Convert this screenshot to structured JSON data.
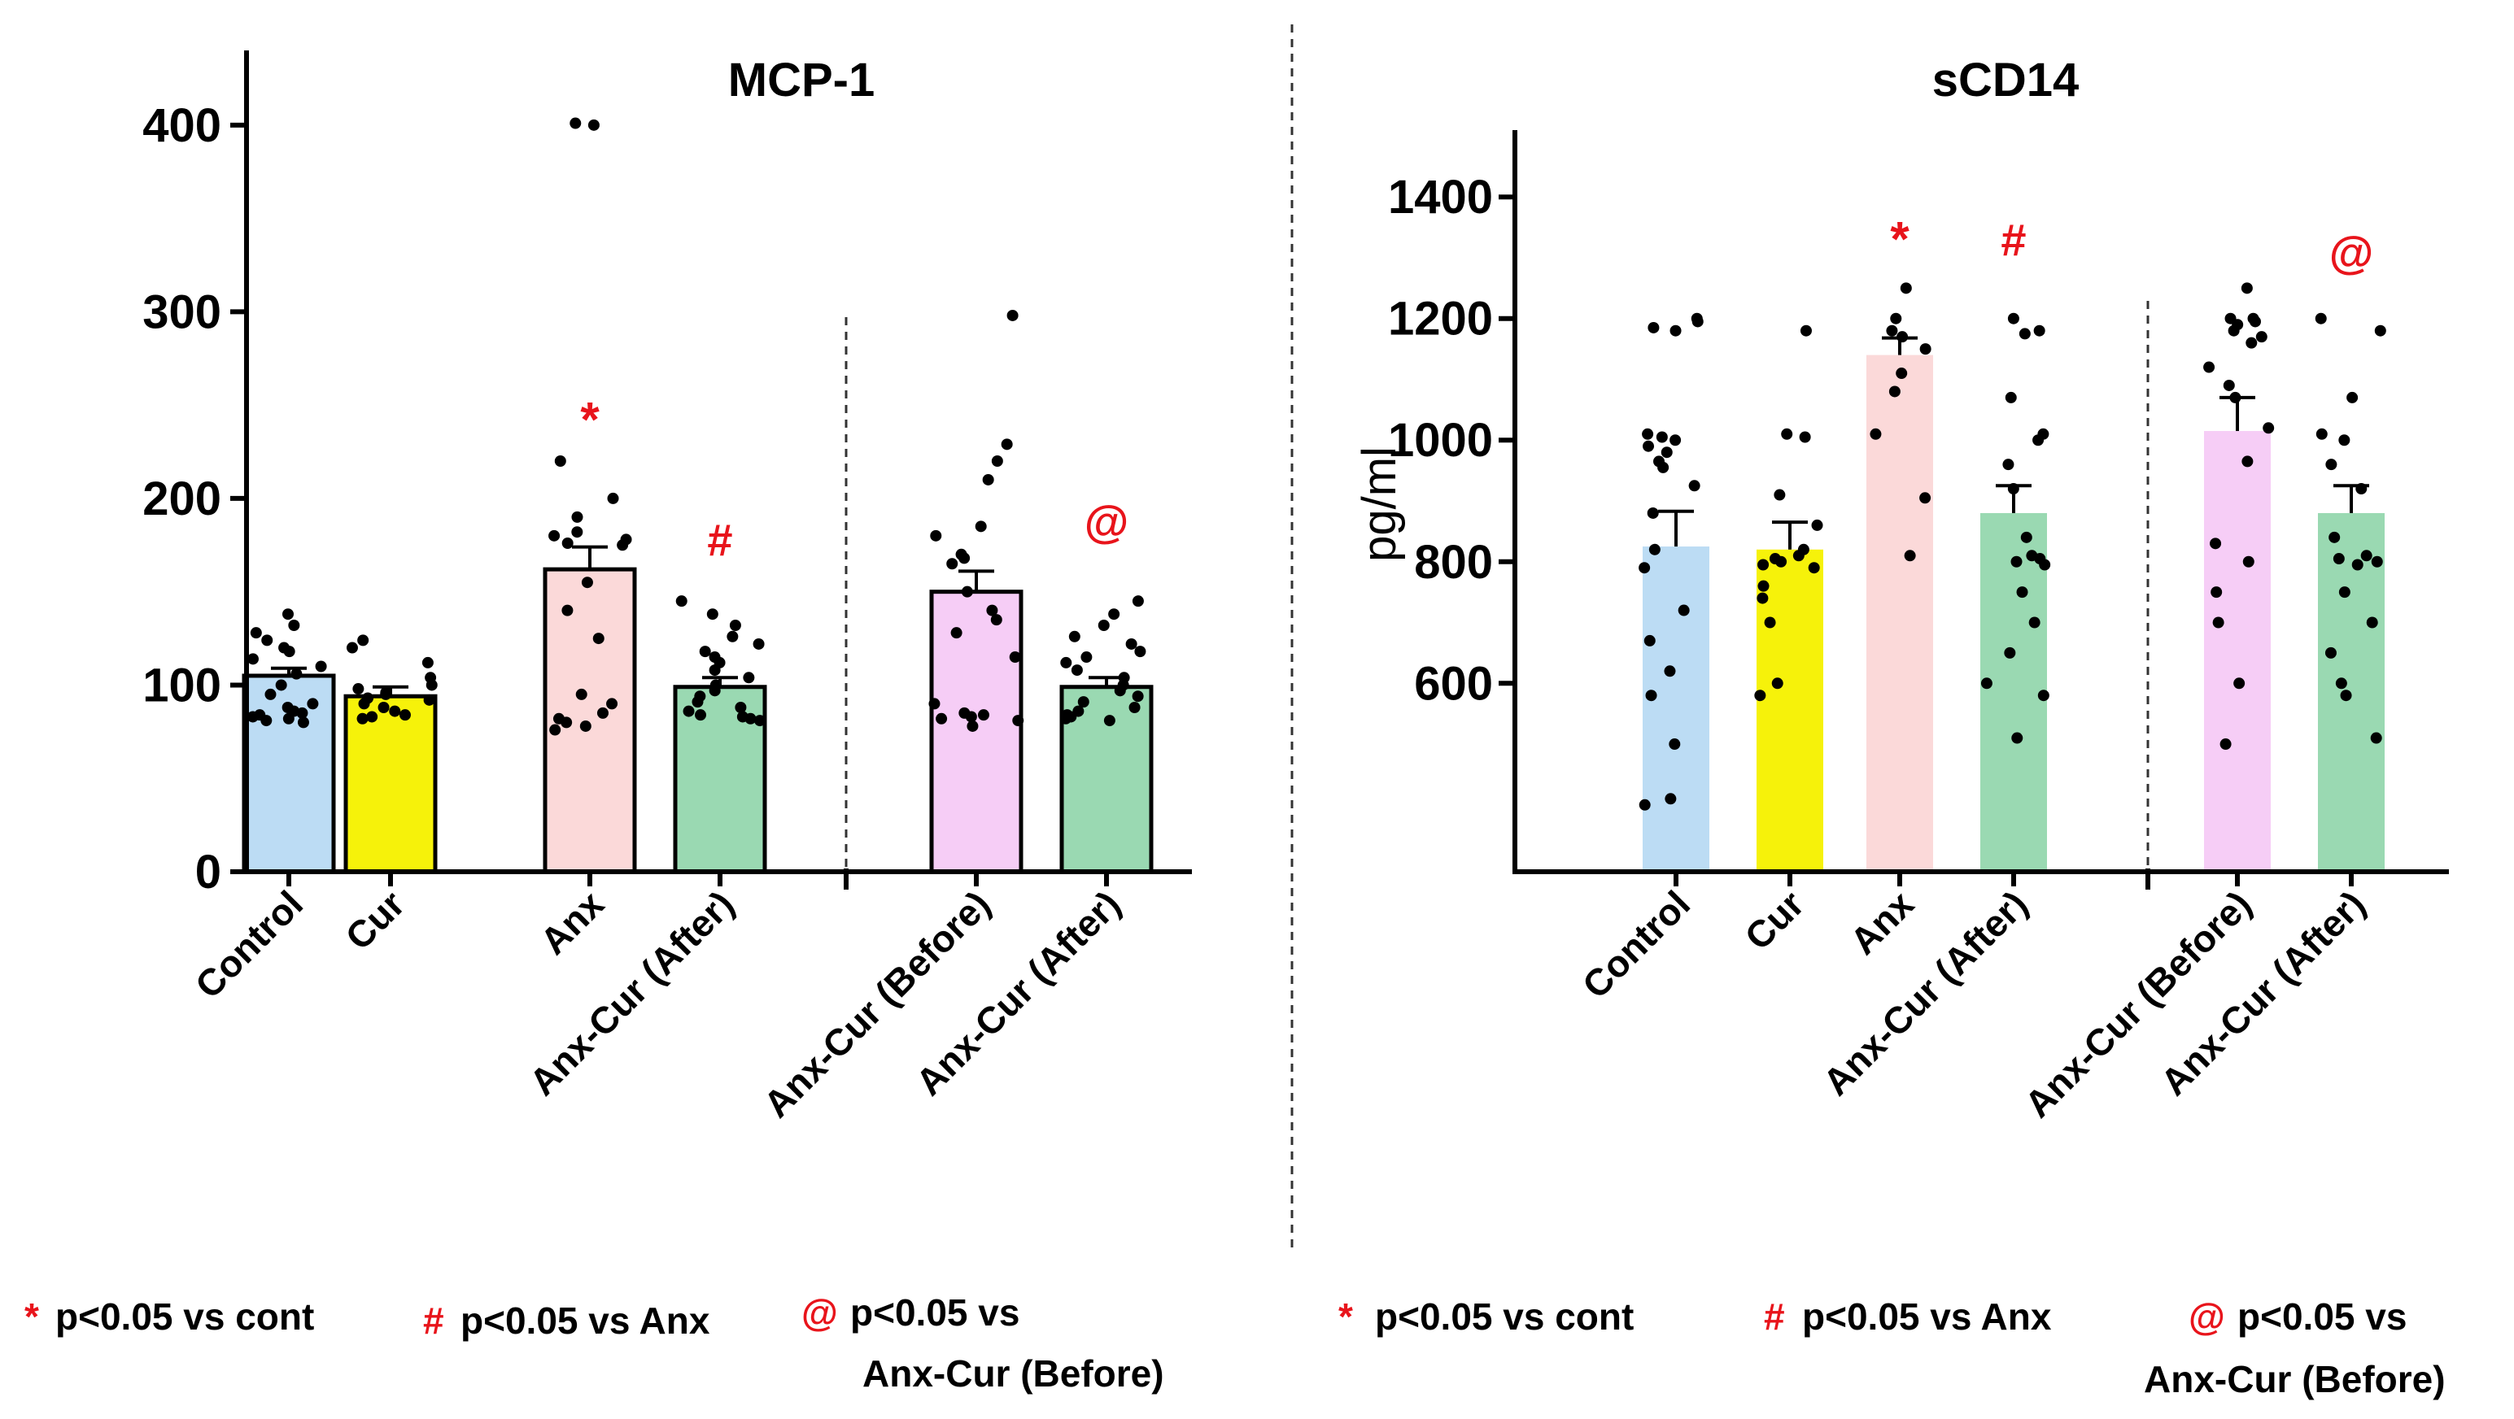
{
  "chart_data": [
    {
      "type": "bar",
      "title": "MCP-1",
      "xlabel": "",
      "ylabel": "",
      "ylim": [
        0,
        440
      ],
      "yticks": [
        0,
        100,
        200,
        300,
        400
      ],
      "categories": [
        "Control",
        "Cur",
        "Anx",
        "Anx-Cur (After)",
        "Anx-Cur (Before)",
        "Anx-Cur (After)"
      ],
      "group_divider_after_index": 3,
      "values": [
        105,
        94,
        162,
        99,
        150,
        99
      ],
      "errors": [
        4,
        5,
        12,
        5,
        11,
        5
      ],
      "bar_colors": [
        "#bcdcf4",
        "#f6f20a",
        "#fbd9d9",
        "#9ad9b2",
        "#f6cdf6",
        "#9ad9b2"
      ],
      "bar_outline": true,
      "points": [
        [
          138,
          132,
          128,
          124,
          120,
          118,
          114,
          110,
          106,
          100,
          95,
          90,
          85,
          83,
          82,
          81,
          80,
          84,
          86,
          88
        ],
        [
          124,
          120,
          112,
          104,
          98,
          95,
          92,
          90,
          88,
          86,
          84,
          83,
          82,
          100,
          96,
          93
        ],
        [
          400,
          401,
          220,
          200,
          190,
          182,
          180,
          178,
          176,
          175,
          155,
          140,
          125,
          95,
          90,
          85,
          82,
          80,
          78,
          76
        ],
        [
          145,
          138,
          132,
          126,
          122,
          118,
          115,
          112,
          108,
          104,
          100,
          97,
          94,
          91,
          88,
          86,
          84,
          83,
          82,
          81
        ],
        [
          298,
          229,
          220,
          210,
          185,
          180,
          170,
          168,
          165,
          150,
          140,
          135,
          128,
          115,
          90,
          85,
          84,
          83,
          82,
          81,
          78
        ],
        [
          145,
          138,
          132,
          126,
          122,
          118,
          115,
          112,
          108,
          104,
          100,
          97,
          94,
          91,
          88,
          86,
          84,
          83,
          82,
          81
        ]
      ],
      "annotations": [
        {
          "category_index": 2,
          "symbol": "*",
          "value": 242
        },
        {
          "category_index": 3,
          "symbol": "#",
          "value": 178
        },
        {
          "category_index": 5,
          "symbol": "@",
          "value": 188
        }
      ]
    },
    {
      "type": "bar",
      "title": "sCD14",
      "xlabel": "",
      "ylabel": "pg/ml",
      "ylim": [
        290,
        1510
      ],
      "yticks": [
        600,
        800,
        1000,
        1200,
        1400
      ],
      "categories": [
        "Control",
        "Cur",
        "Anx",
        "Anx-Cur (After)",
        "Anx-Cur (Before)",
        "Anx-Cur (After)"
      ],
      "group_divider_after_index": 3,
      "values": [
        825,
        820,
        1140,
        880,
        1015,
        880
      ],
      "errors": [
        58,
        45,
        28,
        45,
        55,
        45
      ],
      "bar_colors": [
        "#bcdcf4",
        "#f6f20a",
        "#fbd9d9",
        "#9ad9b2",
        "#f6cdf6",
        "#9ad9b2"
      ],
      "bar_outline": false,
      "points": [
        [
          1200,
          1195,
          1185,
          1180,
          1010,
          1005,
          1000,
          990,
          980,
          965,
          955,
          925,
          880,
          820,
          790,
          720,
          670,
          620,
          580,
          500,
          410,
          400
        ],
        [
          1180,
          1010,
          1005,
          910,
          860,
          820,
          810,
          805,
          800,
          795,
          790,
          760,
          740,
          700,
          600,
          580
        ],
        [
          1250,
          1200,
          1180,
          1170,
          1150,
          1110,
          1080,
          1010,
          905,
          810
        ],
        [
          1200,
          1180,
          1175,
          1070,
          1010,
          1000,
          960,
          920,
          840,
          810,
          805,
          800,
          795,
          750,
          700,
          650,
          600,
          580,
          510
        ],
        [
          1250,
          1200,
          1200,
          1195,
          1190,
          1180,
          1170,
          1160,
          1120,
          1090,
          1070,
          1020,
          965,
          830,
          800,
          750,
          700,
          600,
          500
        ],
        [
          1200,
          1180,
          1070,
          1010,
          1000,
          960,
          920,
          840,
          810,
          805,
          800,
          795,
          750,
          700,
          650,
          600,
          580,
          510
        ]
      ],
      "annotations": [
        {
          "category_index": 2,
          "symbol": "*",
          "value": 1330
        },
        {
          "category_index": 3,
          "symbol": "#",
          "value": 1330
        },
        {
          "category_index": 5,
          "symbol": "@",
          "value": 1310
        }
      ]
    }
  ],
  "legend_left": [
    {
      "symbol": "*",
      "text": "p<0.05 vs cont"
    },
    {
      "symbol": "#",
      "text": "p<0.05 vs Anx"
    },
    {
      "symbol": "@",
      "text": "p<0.05 vs",
      "text2": "Anx-Cur (Before)"
    }
  ],
  "legend_right": [
    {
      "symbol": "*",
      "text": "p<0.05 vs cont"
    },
    {
      "symbol": "#",
      "text": "p<0.05 vs Anx"
    },
    {
      "symbol": "@",
      "text": "p<0.05 vs",
      "text2": "Anx-Cur (Before)"
    }
  ]
}
